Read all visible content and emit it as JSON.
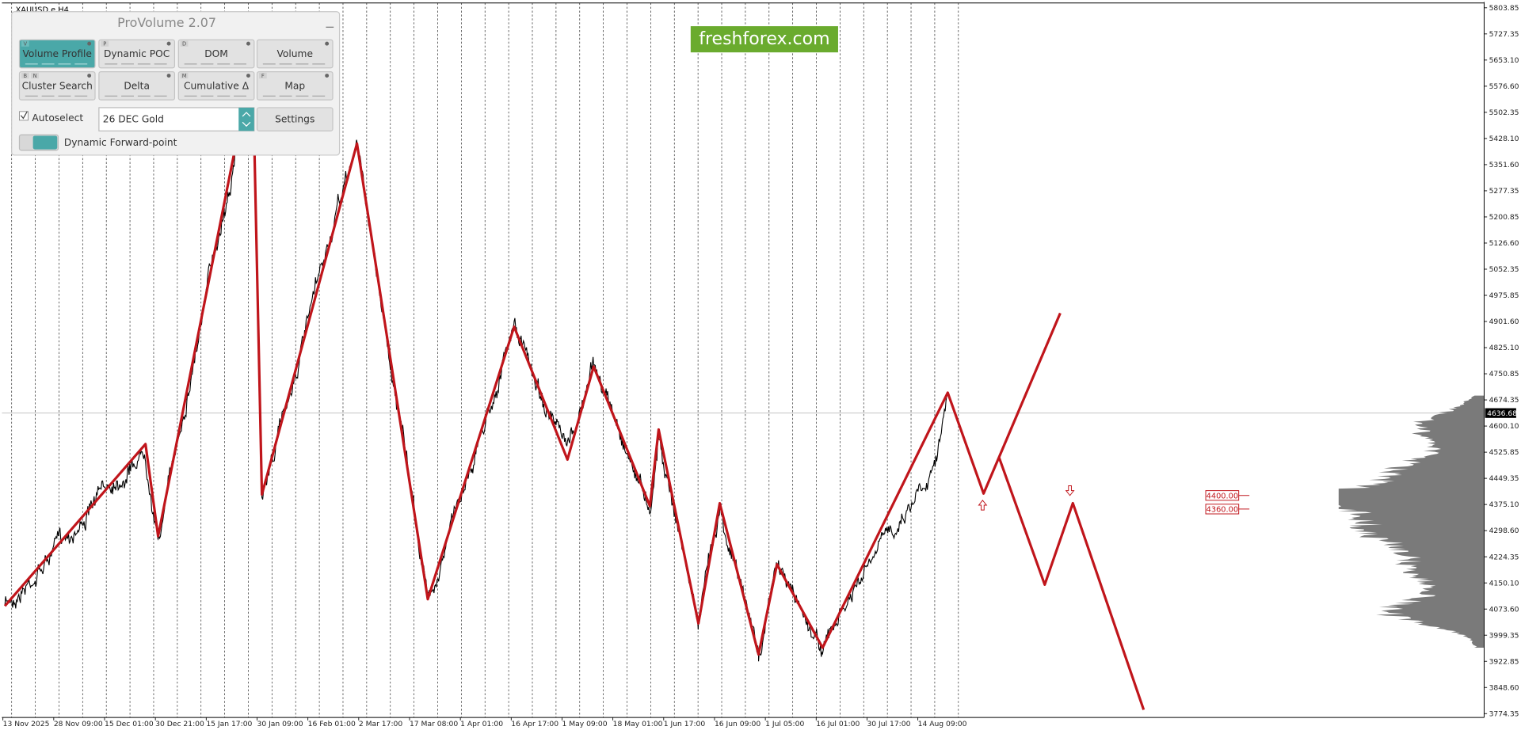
{
  "symbol": "XAUUSD.e,H4",
  "panel": {
    "title": "ProVolume 2.07",
    "buttons": [
      {
        "label": "Volume Profile",
        "keys": [
          "V"
        ]
      },
      {
        "label": "Dynamic POC",
        "keys": [
          "P"
        ]
      },
      {
        "label": "DOM",
        "keys": [
          "D"
        ]
      },
      {
        "label": "Volume"
      },
      {
        "label": "Cluster Search",
        "keys": [
          "B",
          "N"
        ]
      },
      {
        "label": "Delta"
      },
      {
        "label": "Cumulative Δ",
        "keys": [
          "M"
        ]
      },
      {
        "label": "Map",
        "keys": [
          "F"
        ]
      }
    ],
    "autoselect": "Autoselect",
    "instrument": "26 DEC Gold",
    "settings": "Settings",
    "toggle": "Dynamic Forward-point"
  },
  "watermark": "freshforex.com",
  "price_axis": [
    "5803.85",
    "5727.35",
    "5653.10",
    "5576.60",
    "5502.35",
    "5428.10",
    "5351.60",
    "5277.35",
    "5200.85",
    "5126.60",
    "5052.35",
    "4975.85",
    "4901.60",
    "4825.10",
    "4750.85",
    "4674.35",
    "4600.10",
    "4525.85",
    "4449.35",
    "4375.10",
    "4298.60",
    "4224.35",
    "4150.10",
    "4073.60",
    "3999.35",
    "3922.85",
    "3848.60",
    "3774.35"
  ],
  "current_price": "4636.68",
  "levels": [
    "4400.00",
    "4360.00"
  ],
  "time_axis": [
    "13 Nov 2025",
    "28 Nov 09:00",
    "15 Dec 01:00",
    "30 Dec 21:00",
    "15 Jan 17:00",
    "30 Jan 09:00",
    "16 Feb 01:00",
    "2 Mar 17:00",
    "17 Mar 08:00",
    "1 Apr 01:00",
    "16 Apr 17:00",
    "1 May 09:00",
    "18 May 01:00",
    "1 Jun 17:00",
    "16 Jun 09:00",
    "1 Jul 05:00",
    "16 Jul 01:00",
    "30 Jul 17:00",
    "14 Aug 09:00"
  ]
}
